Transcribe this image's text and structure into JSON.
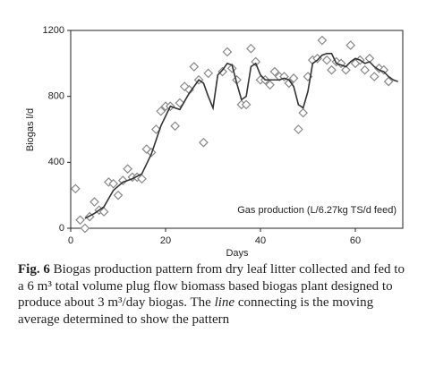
{
  "chart_data": {
    "type": "scatter",
    "xlabel": "Days",
    "ylabel": "Biogas l/d",
    "annotation": "Gas production (L/6.27kg TS/d feed)",
    "xlim": [
      0,
      70
    ],
    "ylim": [
      0,
      1200
    ],
    "xticks": [
      0,
      20,
      40,
      60
    ],
    "yticks": [
      0,
      400,
      800,
      1200
    ],
    "series": [
      {
        "type": "scatter",
        "color": "#888888",
        "x": [
          1,
          2,
          3,
          4,
          5,
          6,
          7,
          8,
          9,
          10,
          11,
          12,
          13,
          14,
          15,
          16,
          17,
          18,
          19,
          20,
          21,
          22,
          23,
          24,
          25,
          26,
          27,
          28,
          29,
          32,
          33,
          34,
          35,
          36,
          37,
          38,
          39,
          40,
          41,
          42,
          43,
          44,
          45,
          46,
          47,
          48,
          49,
          50,
          51,
          52,
          53,
          54,
          55,
          56,
          57,
          58,
          59,
          60,
          61,
          62,
          63,
          64,
          65,
          66,
          67
        ],
        "values": [
          240,
          50,
          0,
          70,
          160,
          110,
          100,
          280,
          270,
          200,
          290,
          360,
          310,
          310,
          300,
          480,
          460,
          600,
          710,
          740,
          740,
          620,
          760,
          860,
          840,
          980,
          900,
          520,
          940,
          950,
          1070,
          970,
          900,
          750,
          750,
          1090,
          1010,
          900,
          900,
          870,
          950,
          920,
          920,
          880,
          910,
          600,
          700,
          920,
          1020,
          1030,
          1140,
          1020,
          960,
          1010,
          1000,
          960,
          1110,
          1000,
          1020,
          960,
          1030,
          920,
          970,
          960,
          890
        ]
      },
      {
        "type": "line",
        "color": "#333333",
        "x": [
          3,
          5,
          7,
          9,
          11,
          13,
          15,
          17,
          19,
          21,
          23,
          25,
          27,
          28,
          29,
          30,
          31,
          32,
          33,
          34,
          35,
          36,
          37,
          38,
          39,
          40,
          41,
          42,
          43,
          44,
          45,
          46,
          47,
          48,
          49,
          50,
          51,
          52,
          53,
          54,
          55,
          56,
          57,
          58,
          59,
          60,
          61,
          62,
          63,
          64,
          65,
          66,
          67,
          68,
          69
        ],
        "values": [
          60,
          90,
          130,
          230,
          280,
          300,
          330,
          450,
          620,
          740,
          720,
          820,
          900,
          880,
          800,
          730,
          930,
          960,
          1000,
          990,
          880,
          780,
          800,
          980,
          1000,
          930,
          900,
          900,
          900,
          900,
          910,
          900,
          860,
          750,
          730,
          830,
          1000,
          1020,
          1050,
          1060,
          1060,
          1000,
          990,
          980,
          1010,
          1030,
          1020,
          1000,
          1010,
          980,
          960,
          950,
          920,
          900,
          890
        ]
      }
    ]
  },
  "caption": {
    "label": "Fig. 6",
    "text_before": " Biogas production pattern from dry leaf litter collected and fed to a 6 m³ total volume plug flow biomass based biogas plant designed to produce about 3 m³/day biogas. The ",
    "emphasis": "line",
    "text_after": " connecting is the moving average determined to show the pattern"
  }
}
